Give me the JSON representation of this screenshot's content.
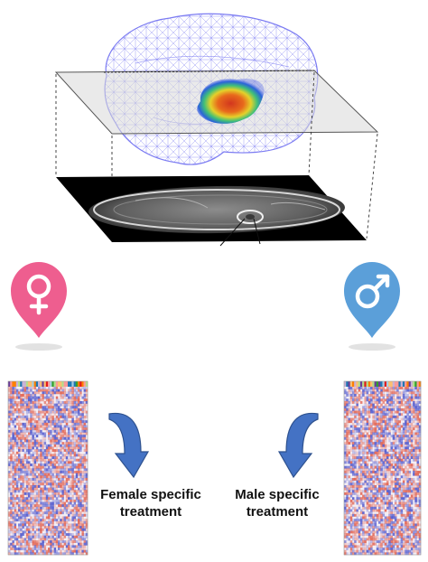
{
  "colors": {
    "female_pin": "#ee5e8f",
    "male_pin": "#5b9fd9",
    "arrow_fill": "#4472c4",
    "arrow_stroke": "#2f528f",
    "brain_mesh": "#7b7bf2",
    "slice_plane": "#dcdcdc",
    "heatmap_blue": "#3b46c9",
    "heatmap_red": "#e0503a"
  },
  "icons": {
    "female": "female-symbol-icon",
    "male": "male-symbol-icon"
  },
  "labels": {
    "female_line1": "Female specific",
    "female_line2": "treatment",
    "male_line1": "Male specific",
    "male_line2": "treatment"
  }
}
